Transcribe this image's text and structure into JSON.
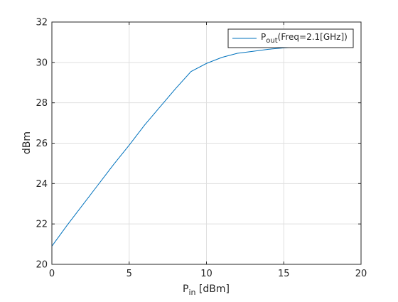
{
  "chart_data": {
    "type": "line",
    "title": "",
    "xlabel_main": "P",
    "xlabel_sub": "in",
    "xlabel_rest": " [dBm]",
    "ylabel": "dBm",
    "xlim": [
      0,
      20
    ],
    "ylim": [
      20,
      32
    ],
    "xticks": [
      "0",
      "5",
      "10",
      "15",
      "20"
    ],
    "yticks": [
      "20",
      "22",
      "24",
      "26",
      "28",
      "30",
      "32"
    ],
    "grid": true,
    "legend_placement": "top-right",
    "series": [
      {
        "name_main": "P",
        "name_sub": "out",
        "name_rest": "(Freq=2.1[GHz])",
        "color": "#0072BD",
        "x": [
          0,
          1,
          2,
          3,
          4,
          5,
          6,
          7,
          8,
          9,
          10,
          11,
          12,
          13,
          14,
          15,
          16
        ],
        "y": [
          20.9,
          21.95,
          22.95,
          23.95,
          24.95,
          25.9,
          26.9,
          27.8,
          28.7,
          29.55,
          29.95,
          30.25,
          30.45,
          30.55,
          30.65,
          30.72,
          30.76
        ]
      }
    ]
  }
}
